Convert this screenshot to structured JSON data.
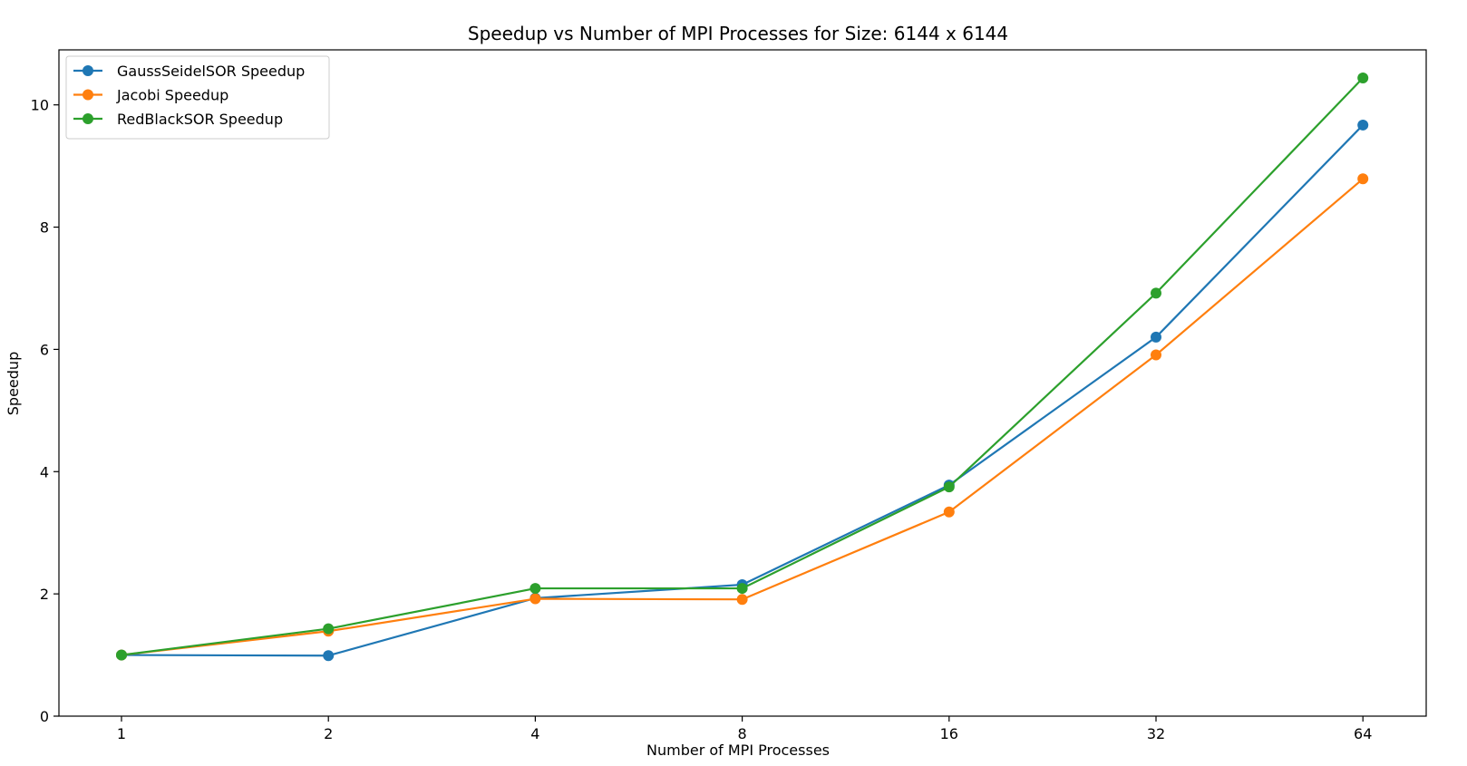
{
  "chart_data": {
    "type": "line",
    "title": "Speedup vs Number of MPI Processes for Size: 6144 x 6144",
    "xlabel": "Number of MPI Processes",
    "ylabel": "Speedup",
    "x_scale": "log2",
    "categories": [
      "1",
      "2",
      "4",
      "8",
      "16",
      "32",
      "64"
    ],
    "x": [
      1,
      2,
      4,
      8,
      16,
      32,
      64
    ],
    "ylim": [
      0,
      10.9
    ],
    "yticks": [
      "0",
      "2",
      "4",
      "6",
      "8",
      "10"
    ],
    "ytick_values": [
      0,
      2,
      4,
      6,
      8,
      10
    ],
    "grid": false,
    "legend_position": "upper-left",
    "series": [
      {
        "name": "GaussSeidelSOR Speedup",
        "color": "#1f77b4",
        "values": [
          1.0,
          0.99,
          1.93,
          2.15,
          3.78,
          6.2,
          9.67
        ]
      },
      {
        "name": "Jacobi Speedup",
        "color": "#ff7f0e",
        "values": [
          1.0,
          1.39,
          1.92,
          1.91,
          3.34,
          5.91,
          8.79
        ]
      },
      {
        "name": "RedBlackSOR Speedup",
        "color": "#2ca02c",
        "values": [
          1.0,
          1.43,
          2.09,
          2.09,
          3.75,
          6.92,
          10.44
        ]
      }
    ]
  }
}
